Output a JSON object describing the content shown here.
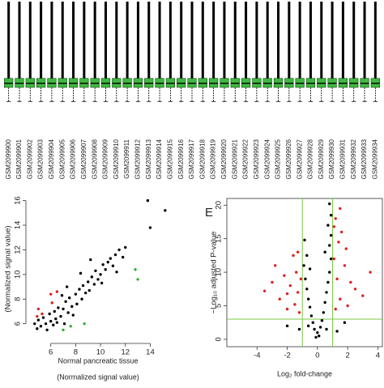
{
  "chart_data": [
    {
      "type": "box",
      "categories": [
        "GSM2099900",
        "GSM2099901",
        "GSM2099902",
        "GSM2099903",
        "GSM2099904",
        "GSM2099905",
        "GSM2099906",
        "GSM2099907",
        "GSM2099908",
        "GSM2099909",
        "GSM2099910",
        "GSM2099911",
        "GSM2099912",
        "GSM2099913",
        "GSM2099914",
        "GSM2099915",
        "GSM2099916",
        "GSM2099917",
        "GSM2099918",
        "GSM2099919",
        "GSM2099920",
        "GSM2099921",
        "GSM2099922",
        "GSM2099923",
        "GSM2099924",
        "GSM2099925",
        "GSM2099926",
        "GSM2099927",
        "GSM2099928",
        "GSM2099929",
        "GSM2099930",
        "GSM2099931",
        "GSM2099932",
        "GSM2099933",
        "GSM2099934"
      ],
      "color": "#3fb83f",
      "ylim": [
        0,
        16
      ],
      "whislo": [
        3.9,
        3.9,
        3.9,
        3.9,
        3.9,
        3.9,
        3.9,
        3.9,
        3.9,
        3.9,
        3.9,
        3.9,
        3.9,
        3.9,
        3.9,
        3.9,
        3.9,
        3.9,
        3.9,
        3.9,
        3.9,
        3.9,
        3.9,
        3.9,
        3.9,
        3.9,
        3.9,
        3.9,
        3.9,
        3.9,
        3.9,
        3.9,
        3.9,
        3.9,
        3.9
      ],
      "q1": [
        5.6,
        5.6,
        5.6,
        5.6,
        5.6,
        5.6,
        5.6,
        5.6,
        5.6,
        5.6,
        5.6,
        5.6,
        5.6,
        5.6,
        5.6,
        5.6,
        5.6,
        5.6,
        5.6,
        5.6,
        5.6,
        5.6,
        5.6,
        5.6,
        5.6,
        5.6,
        5.6,
        5.6,
        5.6,
        5.6,
        5.6,
        5.6,
        5.6,
        5.6,
        5.6
      ],
      "med": [
        6.1,
        6.1,
        6.1,
        6.1,
        6.1,
        6.1,
        6.1,
        6.1,
        6.1,
        6.1,
        6.1,
        6.1,
        6.1,
        6.1,
        6.1,
        6.1,
        6.1,
        6.1,
        6.1,
        6.1,
        6.1,
        6.1,
        6.1,
        6.1,
        6.1,
        6.1,
        6.1,
        6.1,
        6.1,
        6.1,
        6.1,
        6.1,
        6.1,
        6.1,
        6.1
      ],
      "q3": [
        6.7,
        6.7,
        6.7,
        6.7,
        6.7,
        6.7,
        6.7,
        6.7,
        6.7,
        6.7,
        6.7,
        6.7,
        6.7,
        6.7,
        6.7,
        6.7,
        6.7,
        6.7,
        6.7,
        6.7,
        6.7,
        6.7,
        6.7,
        6.7,
        6.7,
        6.7,
        6.7,
        6.7,
        6.7,
        6.7,
        6.7,
        6.7,
        6.7,
        6.7,
        6.7
      ],
      "whishi": [
        16,
        16,
        16,
        16,
        16,
        16,
        16,
        16,
        16,
        16,
        16,
        16,
        16,
        16,
        16,
        16,
        16,
        16,
        16,
        16,
        16,
        16,
        16,
        16,
        16,
        16,
        16,
        16,
        16,
        16,
        16,
        16,
        16,
        16,
        16
      ]
    },
    {
      "type": "scatter",
      "xlabel": "Normal pancreatic tissue",
      "xlabel_note": "(Normalized signal value)",
      "ylabel": "(Normalized signal value)",
      "xlim": [
        4.0,
        15.6
      ],
      "ylim": [
        4.4,
        16.5
      ],
      "xticks": [
        6,
        8,
        10,
        12,
        14
      ],
      "yticks": [
        6,
        8,
        10,
        12,
        14,
        16
      ],
      "series": [
        {
          "color": "#000000",
          "x": [
            4.7,
            4.9,
            5.0,
            5.2,
            5.4,
            5.6,
            5.7,
            5.9,
            6.0,
            6.2,
            6.3,
            6.4,
            6.5,
            6.6,
            6.8,
            7.0,
            7.1,
            7.2,
            7.4,
            7.5,
            7.7,
            7.8,
            8.0,
            8.1,
            8.3,
            8.5,
            8.6,
            8.8,
            9.0,
            9.1,
            9.3,
            9.5,
            9.6,
            9.8,
            10.0,
            10.2,
            10.4,
            10.6,
            10.8,
            11.0,
            11.2,
            11.5,
            11.8,
            12.0,
            7.3,
            8.4,
            9.2,
            10.1,
            6.9,
            11.3,
            13.8,
            15.2,
            14.0
          ],
          "values": [
            6.0,
            5.6,
            6.3,
            5.8,
            6.5,
            6.0,
            5.5,
            6.8,
            6.2,
            5.9,
            7.0,
            6.4,
            6.1,
            7.3,
            6.6,
            7.2,
            6.0,
            7.8,
            6.9,
            8.1,
            7.4,
            6.7,
            8.4,
            7.6,
            8.8,
            8.0,
            9.1,
            8.5,
            9.4,
            8.7,
            9.8,
            9.2,
            10.3,
            9.6,
            10.0,
            10.8,
            10.4,
            11.0,
            11.3,
            10.7,
            11.6,
            12.0,
            11.4,
            12.2,
            9.0,
            10.1,
            11.2,
            9.3,
            8.3,
            10.2,
            16.0,
            15.2,
            13.8
          ]
        },
        {
          "color": "#e02020",
          "x": [
            5.0,
            5.3,
            6.0,
            6.5,
            6.1,
            4.9
          ],
          "values": [
            7.2,
            6.8,
            8.4,
            8.6,
            7.7,
            6.6
          ]
        },
        {
          "color": "#33b033",
          "x": [
            12.8,
            13.0,
            8.7,
            7.6,
            7.0
          ],
          "values": [
            10.4,
            9.6,
            6.0,
            5.8,
            5.5
          ]
        }
      ]
    },
    {
      "type": "scatter",
      "panel_label": "E",
      "xlabel": "Log₂ fold-change",
      "ylabel": "−Log₁₀ adjusted P-value",
      "xlim": [
        -6.0,
        4.3
      ],
      "ylim": [
        -1.1,
        21
      ],
      "xticks": [
        -4,
        -2,
        0,
        2,
        4
      ],
      "yticks": [
        0,
        5,
        10,
        15,
        20
      ],
      "vlines": [
        -1,
        1
      ],
      "hlines": [
        3
      ],
      "line_color": "#7ac943",
      "series": [
        {
          "color": "#000000",
          "x": [
            -0.1,
            0.1,
            0.0,
            -0.2,
            0.2,
            -0.3,
            0.3,
            -0.4,
            0.4,
            -0.5,
            0.5,
            -0.6,
            0.6,
            -0.7,
            0.7,
            -0.8,
            0.8,
            -0.9,
            0.9,
            -0.7,
            0.8,
            0.9,
            0.7,
            0.9,
            0.8,
            -0.5,
            -0.85,
            0.5,
            -1.2,
            1.3,
            -2.0,
            1.8,
            -0.6,
            0.6
          ],
          "values": [
            0.3,
            0.5,
            1.0,
            1.5,
            1.8,
            2.5,
            2.8,
            3.5,
            4.0,
            4.8,
            5.5,
            6.0,
            7.0,
            7.5,
            8.5,
            9.0,
            10.0,
            11.0,
            12.0,
            12.5,
            14.0,
            15.5,
            17.0,
            18.5,
            20.2,
            10.5,
            14.8,
            13.0,
            1.5,
            1.2,
            2.0,
            2.5,
            2.0,
            1.5
          ]
        },
        {
          "color": "#e02020",
          "x": [
            -1.2,
            -1.5,
            -2.0,
            -2.5,
            -1.3,
            -1.8,
            -3.0,
            -2.2,
            -1.4,
            -3.5,
            -2.8,
            -1.6,
            -1.1,
            -2.0,
            -1.3,
            1.2,
            1.5,
            2.0,
            2.5,
            1.3,
            1.8,
            1.1,
            1.4,
            1.6,
            1.2,
            1.5,
            2.2,
            3.0,
            3.5,
            1.9,
            1.1
          ],
          "values": [
            4.0,
            5.2,
            4.5,
            6.0,
            7.0,
            8.0,
            8.5,
            9.5,
            10.0,
            7.2,
            11.0,
            12.5,
            9.0,
            6.8,
            13.0,
            4.5,
            6.0,
            5.0,
            7.5,
            9.0,
            11.0,
            12.0,
            14.5,
            16.0,
            18.0,
            19.5,
            8.5,
            6.5,
            10.0,
            13.5,
            16.8
          ]
        }
      ]
    }
  ]
}
